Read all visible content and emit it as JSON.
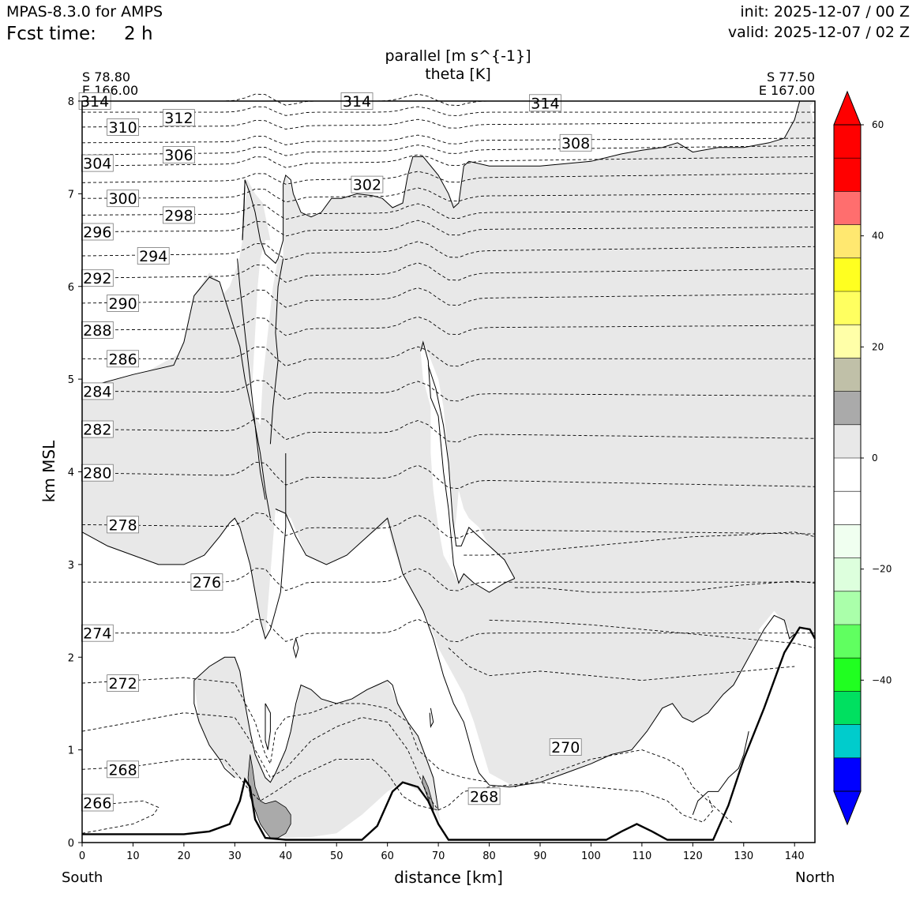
{
  "header": {
    "model": "MPAS-8.3.0 for AMPS",
    "fcst_label": "Fcst time:",
    "fcst_value": "2 h",
    "init": "init: 2025-12-07 / 00 Z",
    "valid": "valid: 2025-12-07 / 02 Z"
  },
  "chart_data": {
    "type": "cross-section",
    "title": "parallel [m s^{-1}]",
    "subtitle": "theta [K]",
    "xlabel": "distance [km]",
    "ylabel": "km MSL",
    "xlim": [
      0,
      144
    ],
    "ylim": [
      0,
      8
    ],
    "x_ticks": [
      0,
      10,
      20,
      30,
      40,
      50,
      60,
      70,
      80,
      90,
      100,
      110,
      120,
      130,
      140
    ],
    "y_ticks": [
      0,
      1,
      2,
      3,
      4,
      5,
      6,
      7,
      8
    ],
    "left_endpoint": {
      "lat": "S 78.80",
      "lon": "E 166.00",
      "direction": "South"
    },
    "right_endpoint": {
      "lat": "S 77.50",
      "lon": "E 167.00",
      "direction": "North"
    },
    "theta_contour_labels": [
      {
        "text": "314",
        "x": 2.5,
        "y": 8.0
      },
      {
        "text": "312",
        "x": 19,
        "y": 7.82
      },
      {
        "text": "310",
        "x": 8,
        "y": 7.72
      },
      {
        "text": "306",
        "x": 19,
        "y": 7.42
      },
      {
        "text": "304",
        "x": 3,
        "y": 7.33
      },
      {
        "text": "302",
        "x": 56,
        "y": 7.1
      },
      {
        "text": "300",
        "x": 8,
        "y": 6.95
      },
      {
        "text": "298",
        "x": 19,
        "y": 6.77
      },
      {
        "text": "296",
        "x": 3,
        "y": 6.59
      },
      {
        "text": "294",
        "x": 14,
        "y": 6.33
      },
      {
        "text": "292",
        "x": 3,
        "y": 6.09
      },
      {
        "text": "290",
        "x": 8,
        "y": 5.82
      },
      {
        "text": "288",
        "x": 3,
        "y": 5.53
      },
      {
        "text": "286",
        "x": 8,
        "y": 5.22
      },
      {
        "text": "284",
        "x": 3,
        "y": 4.87
      },
      {
        "text": "282",
        "x": 3,
        "y": 4.46
      },
      {
        "text": "280",
        "x": 3,
        "y": 3.99
      },
      {
        "text": "278",
        "x": 8,
        "y": 3.43
      },
      {
        "text": "276",
        "x": 24.5,
        "y": 2.81
      },
      {
        "text": "274",
        "x": 3,
        "y": 2.26
      },
      {
        "text": "272",
        "x": 8,
        "y": 1.72
      },
      {
        "text": "270",
        "x": 95,
        "y": 1.03
      },
      {
        "text": "268",
        "x": 8,
        "y": 0.79
      },
      {
        "text": "268",
        "x": 79,
        "y": 0.5
      },
      {
        "text": "266",
        "x": 3,
        "y": 0.43
      },
      {
        "text": "314",
        "x": 54,
        "y": 8.0
      },
      {
        "text": "314",
        "x": 91,
        "y": 7.98
      },
      {
        "text": "308",
        "x": 97,
        "y": 7.55
      }
    ],
    "colorbar": {
      "ticks": [
        "60",
        "40",
        "20",
        "0",
        "−20",
        "−40"
      ],
      "tick_values": [
        60,
        40,
        20,
        0,
        -20,
        -40
      ],
      "levels": [
        -60,
        -54,
        -48,
        -42,
        -36,
        -30,
        -24,
        -18,
        -12,
        -6,
        0,
        6,
        12,
        18,
        24,
        30,
        36,
        42,
        48,
        54,
        60
      ],
      "colors": [
        "#0000ff",
        "#00cccc",
        "#00e060",
        "#20ff20",
        "#60ff60",
        "#aaffaa",
        "#ddffdd",
        "#f0fff0",
        "#ffffff",
        "#ffffff",
        "#e8e8e8",
        "#aaaaaa",
        "#c0c0a8",
        "#ffffa8",
        "#ffff60",
        "#ffff20",
        "#ffe870",
        "#ff6e6e",
        "#ff0000",
        "#ff0000"
      ],
      "extend_min": "#0000ff",
      "extend_max": "#ff0000"
    },
    "terrain_km": [
      [
        0,
        0.09
      ],
      [
        20,
        0.09
      ],
      [
        25,
        0.12
      ],
      [
        29,
        0.2
      ],
      [
        31,
        0.45
      ],
      [
        32,
        0.68
      ],
      [
        33,
        0.6
      ],
      [
        34,
        0.25
      ],
      [
        36,
        0.05
      ],
      [
        40,
        0.03
      ],
      [
        55,
        0.03
      ],
      [
        58,
        0.18
      ],
      [
        61,
        0.55
      ],
      [
        63,
        0.65
      ],
      [
        66,
        0.6
      ],
      [
        68,
        0.45
      ],
      [
        70,
        0.2
      ],
      [
        72,
        0.03
      ],
      [
        103,
        0.03
      ],
      [
        106,
        0.12
      ],
      [
        109,
        0.2
      ],
      [
        112,
        0.12
      ],
      [
        115,
        0.03
      ],
      [
        124,
        0.03
      ],
      [
        127,
        0.4
      ],
      [
        130,
        0.9
      ],
      [
        134,
        1.45
      ],
      [
        138,
        2.05
      ],
      [
        141,
        2.32
      ],
      [
        143,
        2.3
      ],
      [
        144,
        2.2
      ]
    ]
  }
}
